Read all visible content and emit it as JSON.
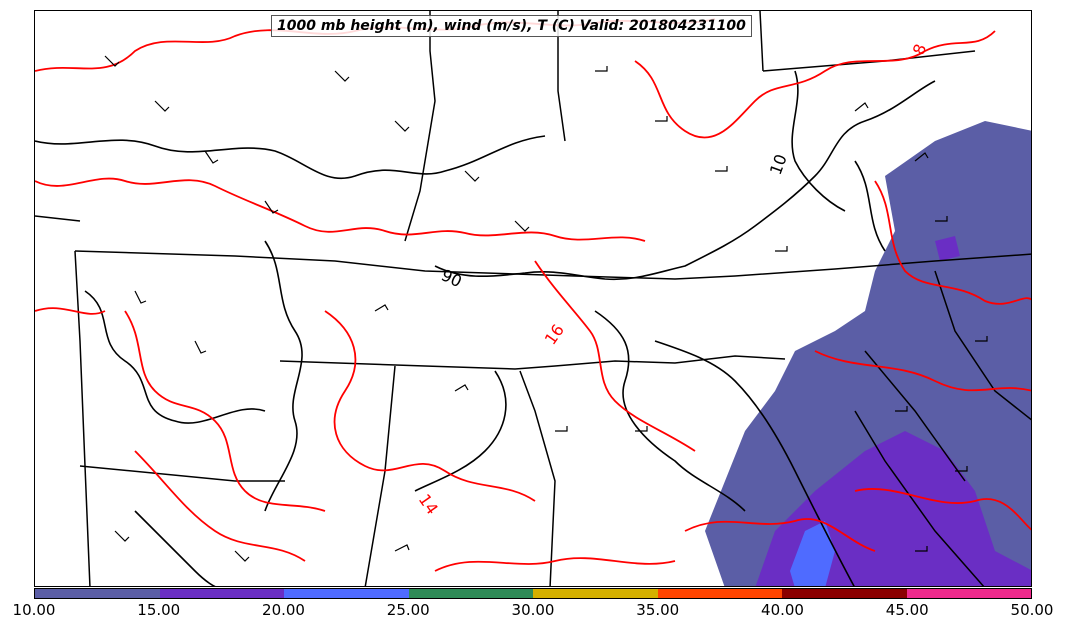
{
  "title": "1000 mb height (m), wind (m/s), T (C) Valid: 201804231100",
  "contour_labels": {
    "height": [
      "90",
      "10"
    ],
    "temperature": [
      "16",
      "14",
      "8"
    ]
  },
  "colorbar": {
    "colors": [
      "#5b5ea6",
      "#6a2ec4",
      "#4f6bff",
      "#2e8b57",
      "#d4b000",
      "#ff4500",
      "#8b0000",
      "#ee2a8c"
    ],
    "ticks": [
      "10.00",
      "15.00",
      "20.00",
      "25.00",
      "30.00",
      "35.00",
      "40.00",
      "45.00",
      "50.00"
    ]
  },
  "style_colors": {
    "temperature_contour": "#ff0000",
    "height_contour": "#000000",
    "boundaries": "#000000"
  }
}
